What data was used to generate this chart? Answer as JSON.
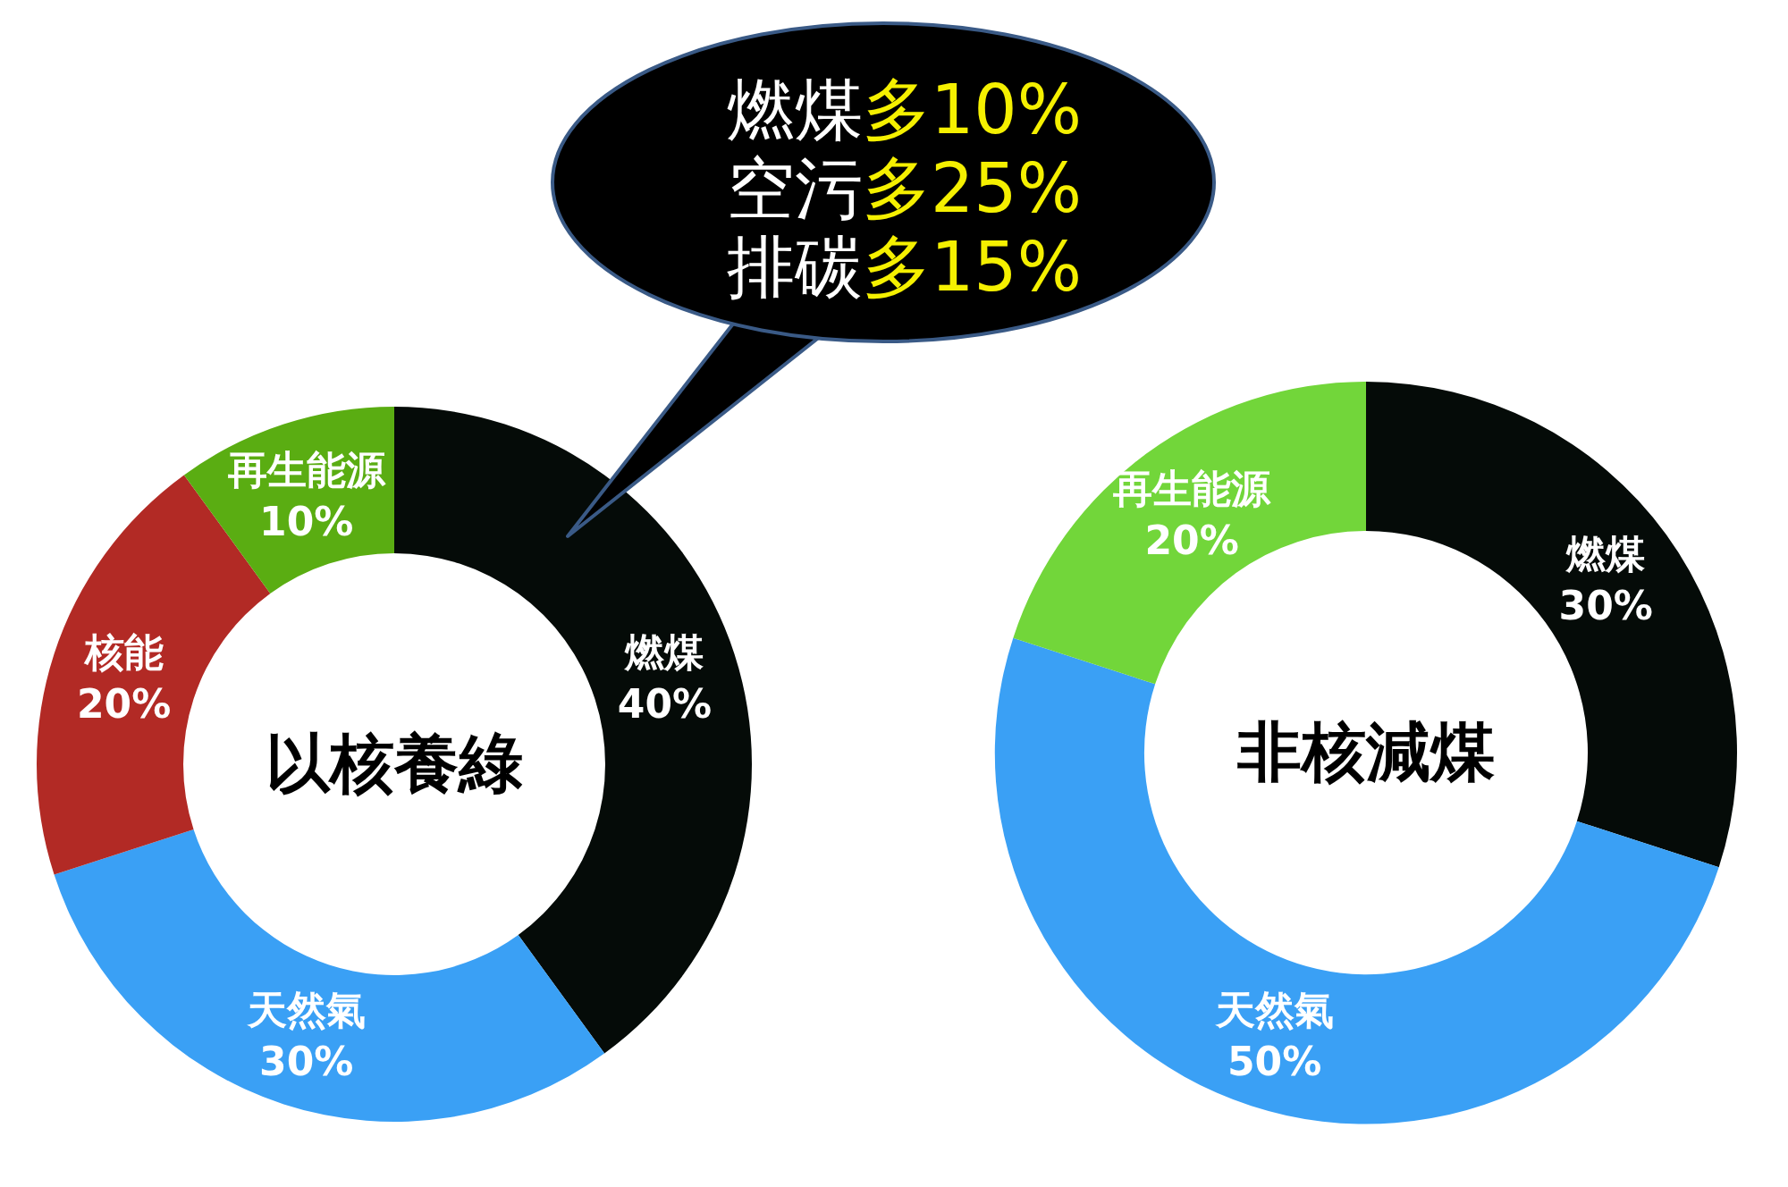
{
  "chart_data": [
    {
      "type": "donut",
      "title": "以核養綠",
      "categories": [
        "燃煤",
        "天然氣",
        "核能",
        "再生能源"
      ],
      "values": [
        40,
        30,
        20,
        10
      ],
      "value_labels": [
        "40%",
        "30%",
        "20%",
        "10%"
      ],
      "colors": [
        "#050b08",
        "#3aa0f5",
        "#b22a25",
        "#5aad12"
      ],
      "legend": false,
      "annotations": [
        "燃煤多10%",
        "空污多25%",
        "排碳多15%"
      ]
    },
    {
      "type": "donut",
      "title": "非核減煤",
      "categories": [
        "燃煤",
        "天然氣",
        "再生能源"
      ],
      "values": [
        30,
        50,
        20
      ],
      "value_labels": [
        "30%",
        "50%",
        "20%"
      ],
      "colors": [
        "#050b08",
        "#3aa0f5",
        "#72d63a"
      ],
      "legend": false
    }
  ]
}
